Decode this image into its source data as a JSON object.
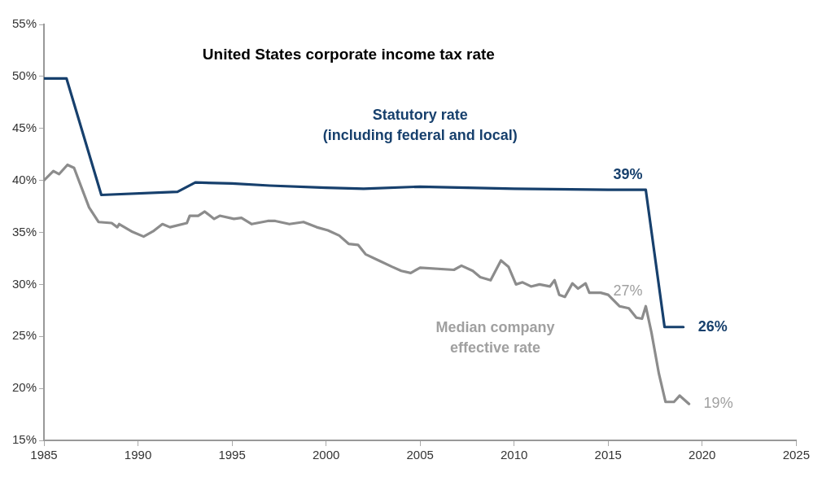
{
  "chart_data": {
    "type": "line",
    "title": "United States corporate income tax rate",
    "xlim": [
      1985,
      2025
    ],
    "xticks": [
      1985,
      1990,
      1995,
      2000,
      2005,
      2010,
      2015,
      2020,
      2025
    ],
    "ylim": [
      15,
      55
    ],
    "yticks": [
      {
        "value": 15,
        "label": "15%"
      },
      {
        "value": 20,
        "label": "20%"
      },
      {
        "value": 25,
        "label": "25%"
      },
      {
        "value": 30,
        "label": "30%"
      },
      {
        "value": 35,
        "label": "35%"
      },
      {
        "value": 40,
        "label": "40%"
      },
      {
        "value": 45,
        "label": "45%"
      },
      {
        "value": 50,
        "label": "50%"
      },
      {
        "value": 55,
        "label": "55%"
      }
    ],
    "grid": false,
    "legend": false,
    "marker": "none",
    "line_style": "solid",
    "series": [
      {
        "name": "Statutory rate\n(including federal and local)",
        "color": "#17406d",
        "x": [
          1985,
          1986.2,
          1988.05,
          1992.1,
          1993.05,
          1995,
          1997,
          2000,
          2002,
          2005,
          2010,
          2015,
          2017,
          2018,
          2019
        ],
        "values": [
          49.8,
          49.8,
          38.6,
          38.9,
          39.8,
          39.7,
          39.5,
          39.3,
          39.2,
          39.4,
          39.2,
          39.1,
          39.1,
          25.9,
          25.9
        ]
      },
      {
        "name": "Median company\neffective rate",
        "color": "#8c8c8c",
        "x": [
          1985,
          1985.5,
          1985.8,
          1986.25,
          1986.6,
          1987,
          1987.4,
          1987.9,
          1988.6,
          1988.9,
          1989,
          1989.65,
          1990.3,
          1990.8,
          1991.3,
          1991.7,
          1992.6,
          1992.75,
          1993.2,
          1993.55,
          1994.05,
          1994.35,
          1995.1,
          1995.5,
          1996.05,
          1996.9,
          1997.3,
          1998.05,
          1998.8,
          1999.5,
          2000.1,
          2000.7,
          2001.2,
          2001.7,
          2002.1,
          2002.8,
          2003.5,
          2004,
          2004.5,
          2005,
          2006.8,
          2007.2,
          2007.8,
          2008.2,
          2008.75,
          2009.3,
          2009.7,
          2010.1,
          2010.45,
          2010.9,
          2011.35,
          2011.9,
          2012.15,
          2012.4,
          2012.7,
          2013.1,
          2013.4,
          2013.8,
          2014,
          2014.6,
          2015,
          2015.6,
          2016.1,
          2016.5,
          2016.8,
          2017,
          2017.3,
          2017.7,
          2018.05,
          2018.5,
          2018.8,
          2019.3
        ],
        "values": [
          40,
          40.9,
          40.6,
          41.5,
          41.2,
          39.3,
          37.4,
          36,
          35.9,
          35.5,
          35.8,
          35.1,
          34.6,
          35.1,
          35.8,
          35.5,
          35.9,
          36.6,
          36.6,
          37,
          36.3,
          36.6,
          36.3,
          36.4,
          35.8,
          36.1,
          36.1,
          35.8,
          36,
          35.5,
          35.2,
          34.7,
          33.9,
          33.8,
          32.9,
          32.3,
          31.7,
          31.3,
          31.1,
          31.6,
          31.4,
          31.8,
          31.3,
          30.7,
          30.4,
          32.3,
          31.7,
          30,
          30.2,
          29.8,
          30,
          29.8,
          30.4,
          29,
          28.8,
          30.1,
          29.6,
          30.1,
          29.2,
          29.2,
          29,
          27.9,
          27.7,
          26.8,
          26.7,
          27.9,
          25.4,
          21.4,
          18.7,
          18.7,
          19.3,
          18.5
        ]
      }
    ],
    "annotations": [
      {
        "text": "39%",
        "x": 2017,
        "y": 39.1
      },
      {
        "text": "26%",
        "x": 2019,
        "y": 25.9
      },
      {
        "text": "27%",
        "x": 2017,
        "y": 27.9
      },
      {
        "text": "19%",
        "x": 2019.3,
        "y": 18.5
      }
    ]
  }
}
